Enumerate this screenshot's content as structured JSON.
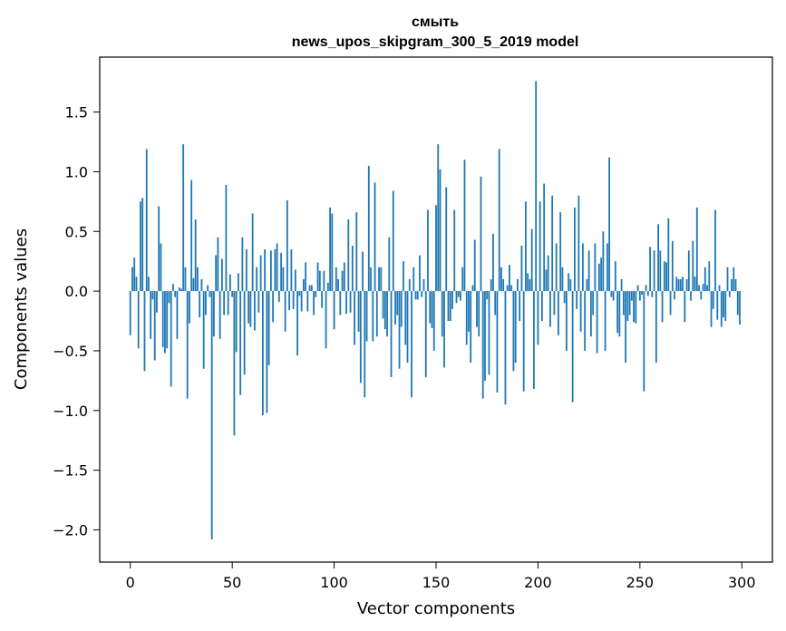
{
  "chart_data": {
    "type": "bar",
    "title": "смыть",
    "subtitle": "news_upos_skipgram_300_5_2019 model",
    "xlabel": "Vector components",
    "ylabel": "Components values",
    "xlim": [
      -15,
      315
    ],
    "ylim": [
      -2.27,
      1.96
    ],
    "xticks": [
      0,
      50,
      100,
      150,
      200,
      250,
      300
    ],
    "xtick_labels": [
      "0",
      "50",
      "100",
      "150",
      "200",
      "250",
      "300"
    ],
    "yticks": [
      -2.0,
      -1.5,
      -1.0,
      -0.5,
      0.0,
      0.5,
      1.0,
      1.5
    ],
    "ytick_labels": [
      "−2.0",
      "−1.5",
      "−1.0",
      "−0.5",
      "0.0",
      "0.5",
      "1.0",
      "1.5"
    ],
    "grid": false,
    "bar_color": "#1f77b4",
    "x": "indices 0..299",
    "values": [
      -0.37,
      0.2,
      0.28,
      0.12,
      -0.48,
      0.75,
      0.78,
      -0.67,
      1.19,
      0.12,
      -0.4,
      -0.07,
      -0.58,
      -0.18,
      0.71,
      0.4,
      -0.47,
      -0.52,
      -0.48,
      -0.1,
      -0.8,
      0.06,
      -0.05,
      -0.4,
      0.03,
      0.02,
      1.23,
      0.2,
      -0.9,
      -0.27,
      0.93,
      0.11,
      0.6,
      0.2,
      -0.22,
      0.1,
      -0.65,
      -0.2,
      0.05,
      -0.05,
      -2.08,
      -0.38,
      0.3,
      0.45,
      -0.4,
      0.27,
      -0.2,
      0.89,
      -0.2,
      0.14,
      -0.05,
      -1.21,
      -0.51,
      0.15,
      -0.87,
      0.45,
      -0.7,
      0.35,
      -0.27,
      -0.3,
      0.65,
      -0.33,
      0.2,
      -0.18,
      0.3,
      -1.04,
      0.35,
      -1.02,
      -0.62,
      0.34,
      -0.26,
      0.35,
      0.4,
      -0.09,
      0.32,
      0.2,
      -0.34,
      0.76,
      -0.16,
      0.35,
      -0.15,
      0.18,
      -0.54,
      -0.04,
      -0.17,
      0.1,
      0.24,
      -0.17,
      0.05,
      0.05,
      -0.2,
      -0.05,
      0.24,
      0.17,
      -0.14,
      0.17,
      -0.48,
      0.07,
      0.7,
      0.65,
      -0.32,
      0.2,
      0.1,
      -0.2,
      0.17,
      0.24,
      -0.19,
      0.6,
      -0.18,
      0.38,
      -0.45,
      0.66,
      -0.34,
      -0.77,
      0.33,
      -0.89,
      -0.42,
      1.05,
      0.2,
      -0.42,
      0.91,
      -0.38,
      0.2,
      0.2,
      -0.23,
      -0.32,
      -0.38,
      0.45,
      -0.72,
      0.84,
      -0.28,
      -0.2,
      -0.65,
      -0.3,
      0.25,
      -0.45,
      -0.6,
      0.1,
      -0.89,
      0.2,
      -0.07,
      -0.07,
      0.3,
      -0.05,
      0.1,
      -0.72,
      0.68,
      -0.27,
      -0.31,
      -0.5,
      0.72,
      1.23,
      1.02,
      -0.38,
      -0.64,
      0.87,
      -0.25,
      -0.25,
      -0.15,
      0.68,
      -0.1,
      -0.05,
      -0.08,
      0.2,
      1.1,
      -0.45,
      -0.34,
      -0.6,
      0.05,
      0.43,
      -0.3,
      -0.38,
      0.96,
      -0.9,
      -0.75,
      -0.07,
      -0.7,
      0.1,
      0.48,
      -0.2,
      -0.85,
      1.19,
      0.2,
      0.1,
      -0.95,
      0.05,
      0.22,
      0.05,
      -0.67,
      -0.6,
      0.1,
      -0.25,
      0.38,
      -0.84,
      0.75,
      0.15,
      0.1,
      0.52,
      -0.82,
      1.76,
      -0.45,
      0.75,
      -0.25,
      0.9,
      0.18,
      0.3,
      -0.3,
      0.8,
      -0.2,
      0.4,
      -0.37,
      0.66,
      0.2,
      -0.1,
      -0.5,
      0.15,
      0.1,
      -0.93,
      0.7,
      -0.15,
      0.8,
      -0.34,
      0.4,
      -0.5,
      0.1,
      0.34,
      -0.38,
      -0.2,
      0.4,
      -0.52,
      0.23,
      0.28,
      0.5,
      -0.5,
      0.4,
      1.12,
      -0.05,
      -0.08,
      0.25,
      -0.35,
      -0.38,
      0.1,
      -0.2,
      -0.6,
      -0.25,
      -0.2,
      -0.08,
      -0.26,
      -0.27,
      0.05,
      -0.08,
      -0.03,
      -0.84,
      0.05,
      -0.04,
      0.37,
      -0.05,
      0.34,
      -0.6,
      0.56,
      0.34,
      -0.26,
      0.25,
      0.24,
      0.61,
      -0.2,
      0.42,
      -0.07,
      0.12,
      0.1,
      0.1,
      0.12,
      -0.26,
      0.1,
      0.34,
      -0.08,
      0.42,
      0.12,
      0.7,
      0.05,
      -0.07,
      0.06,
      0.2,
      0.05,
      0.25,
      -0.3,
      -0.15,
      0.68,
      -0.24,
      0.05,
      -0.3,
      -0.22,
      -0.25,
      0.2,
      -0.05,
      0.1,
      0.2,
      0.1,
      -0.2,
      -0.28
    ]
  }
}
